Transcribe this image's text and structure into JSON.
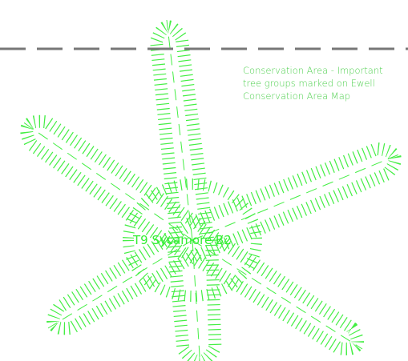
{
  "annotations": {
    "conservation_note": [
      "Conservation Area - Important",
      "tree groups marked on Ewell",
      "Conservation Area Map"
    ]
  },
  "tree_label": "T9 Sycamore B2"
}
